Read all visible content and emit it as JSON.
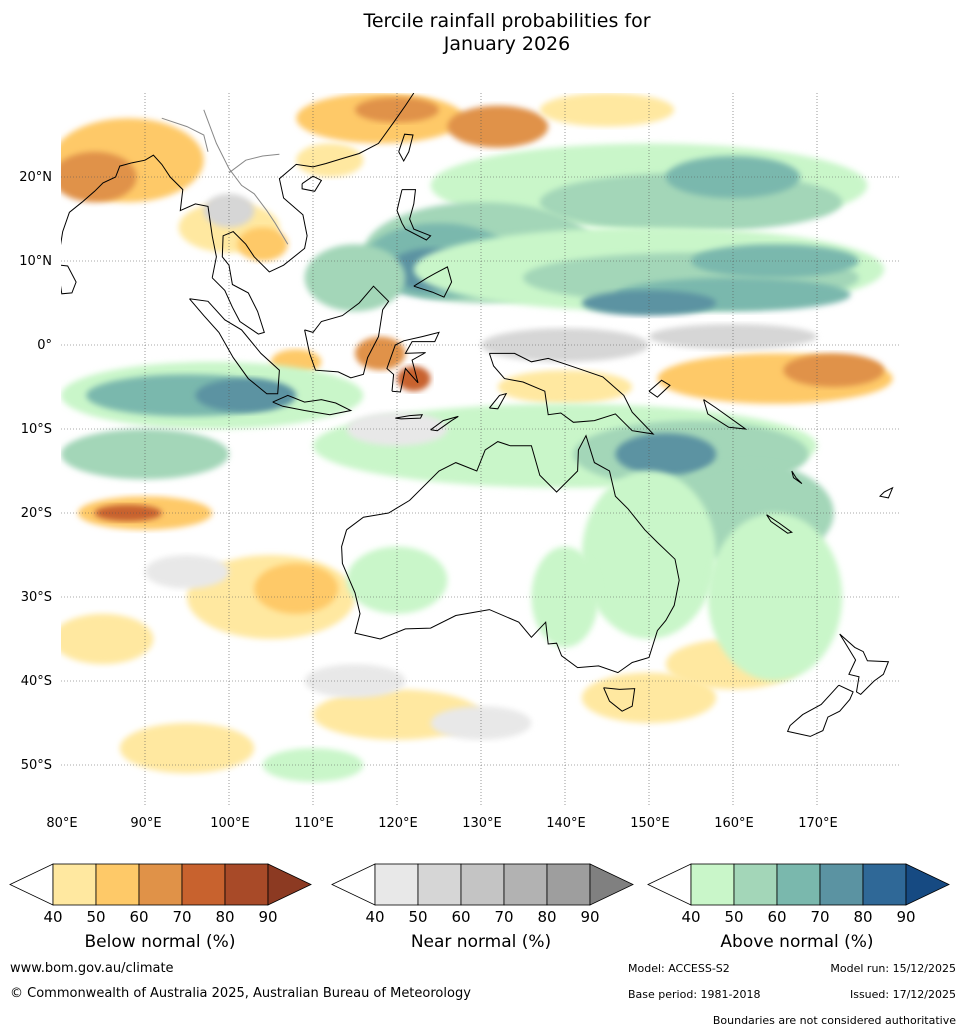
{
  "title": {
    "line1": "Tercile rainfall probabilities for",
    "line2": "January 2026"
  },
  "map": {
    "lat_labels": [
      "20°N",
      "10°N",
      "0°",
      "10°S",
      "20°S",
      "30°S",
      "40°S",
      "50°S"
    ],
    "lon_labels": [
      "80°E",
      "90°E",
      "100°E",
      "110°E",
      "120°E",
      "130°E",
      "140°E",
      "150°E",
      "160°E",
      "170°E"
    ],
    "colors": {
      "below": [
        "#ffe8a0",
        "#fec968",
        "#e09248",
        "#c8622e",
        "#a84a28",
        "#8c3a22"
      ],
      "near": [
        "#e8e8e8",
        "#d6d6d6",
        "#c4c4c4",
        "#b2b2b2",
        "#9e9e9e",
        "#808080"
      ],
      "above": [
        "#c9f6c9",
        "#a3d6b8",
        "#7ab8ad",
        "#5b93a2",
        "#2f6897",
        "#164a82"
      ],
      "land_outline": "#000000",
      "border": "#888888"
    }
  },
  "legends": [
    {
      "label": "Below normal (%)",
      "ticks": [
        "40",
        "50",
        "60",
        "70",
        "80",
        "90"
      ]
    },
    {
      "label": "Near normal (%)",
      "ticks": [
        "40",
        "50",
        "60",
        "70",
        "80",
        "90"
      ]
    },
    {
      "label": "Above normal (%)",
      "ticks": [
        "40",
        "50",
        "60",
        "70",
        "80",
        "90"
      ]
    }
  ],
  "footer": {
    "url": "www.bom.gov.au/climate",
    "copyright": "© Commonwealth of Australia 2025, Australian Bureau of Meteorology",
    "model": "Model: ACCESS-S2",
    "model_run": "Model run: 15/12/2025",
    "base_period": "Base period: 1981-2018",
    "issued": "Issued: 17/12/2025",
    "disclaimer": "Boundaries are not considered authoritative"
  }
}
